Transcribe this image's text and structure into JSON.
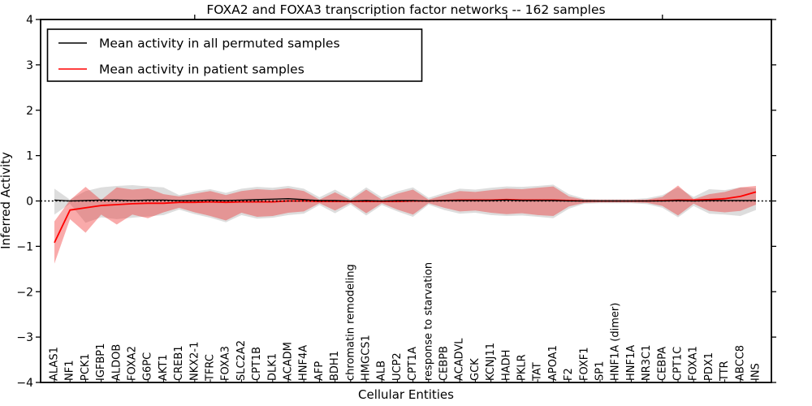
{
  "chart_data": {
    "type": "line",
    "title": "FOXA2 and FOXA3 transcription factor networks -- 162 samples",
    "xlabel": "Cellular Entities",
    "ylabel": "Inferred Activity",
    "ylim": [
      -4,
      4
    ],
    "yticks": [
      4,
      3,
      2,
      1,
      0,
      -1,
      -2,
      -3,
      -4
    ],
    "grid": false,
    "zero_line_style": "dotted",
    "legend_position": "upper left",
    "legend": [
      {
        "label": "Mean activity in all permuted samples",
        "color": "#000000"
      },
      {
        "label": "Mean activity in patient samples",
        "color": "#ff0000"
      }
    ],
    "categories": [
      "ALAS1",
      "NF1",
      "PCK1",
      "IGFBP1",
      "ALDOB",
      "FOXA2",
      "G6PC",
      "AKT1",
      "CREB1",
      "NKX2-1",
      "TFRC",
      "FOXA3",
      "SLC2A2",
      "CPT1B",
      "DLK1",
      "ACADM",
      "HNF4A",
      "AFP",
      "BDH1",
      "chromatin remodeling",
      "HMGCS1",
      "ALB",
      "UCP2",
      "CPT1A",
      "response to starvation",
      "CEBPB",
      "ACADVL",
      "GCK",
      "KCNJ11",
      "HADH",
      "PKLR",
      "TAT",
      "APOA1",
      "F2",
      "FOXF1",
      "SP1",
      "HNF1A (dimer)",
      "HNF1A",
      "NR3C1",
      "CEBPA",
      "CPT1C",
      "FOXA1",
      "PDX1",
      "TTR",
      "ABCC8",
      "INS"
    ],
    "series": [
      {
        "name": "Mean activity in all permuted samples",
        "color": "#000000",
        "values": [
          0.02,
          0.0,
          0.01,
          0.02,
          0.02,
          0.01,
          0.02,
          0.02,
          0.01,
          0.01,
          0.02,
          0.01,
          0.02,
          0.03,
          0.04,
          0.05,
          0.03,
          0.01,
          0.01,
          0.0,
          0.01,
          0.0,
          0.01,
          0.01,
          0.0,
          0.01,
          0.01,
          0.01,
          0.01,
          0.02,
          0.01,
          0.01,
          0.01,
          0.0,
          0.0,
          0.0,
          0.0,
          0.0,
          0.0,
          0.0,
          0.01,
          0.0,
          0.01,
          0.01,
          0.01,
          0.01
        ]
      },
      {
        "name": "Mean activity in patient samples",
        "color": "#ff0000",
        "values": [
          -0.92,
          -0.2,
          -0.15,
          -0.1,
          -0.08,
          -0.06,
          -0.05,
          -0.05,
          -0.03,
          -0.03,
          -0.02,
          -0.03,
          -0.02,
          -0.02,
          -0.02,
          0.0,
          0.0,
          -0.01,
          -0.01,
          -0.01,
          -0.01,
          -0.01,
          -0.01,
          0.0,
          0.0,
          0.01,
          0.02,
          0.02,
          0.02,
          0.03,
          0.02,
          0.02,
          0.02,
          0.01,
          0.0,
          0.0,
          0.0,
          0.0,
          0.0,
          0.01,
          0.02,
          0.02,
          0.03,
          0.05,
          0.1,
          0.2
        ]
      }
    ],
    "bands": [
      {
        "name": "permuted samples range",
        "fill": "#aaaaaa",
        "opacity": 0.4,
        "upper": [
          0.27,
          0.03,
          0.22,
          0.3,
          0.33,
          0.35,
          0.32,
          0.3,
          0.13,
          0.21,
          0.26,
          0.18,
          0.27,
          0.31,
          0.29,
          0.33,
          0.27,
          0.08,
          0.25,
          0.06,
          0.3,
          0.08,
          0.21,
          0.3,
          0.07,
          0.18,
          0.27,
          0.25,
          0.29,
          0.32,
          0.31,
          0.33,
          0.36,
          0.15,
          0.05,
          0.04,
          0.04,
          0.04,
          0.06,
          0.13,
          0.3,
          0.09,
          0.26,
          0.24,
          0.3,
          0.28
        ],
        "lower": [
          -0.3,
          -0.06,
          -0.48,
          -0.36,
          -0.4,
          -0.37,
          -0.34,
          -0.31,
          -0.19,
          -0.29,
          -0.37,
          -0.47,
          -0.31,
          -0.39,
          -0.37,
          -0.31,
          -0.28,
          -0.09,
          -0.27,
          -0.08,
          -0.32,
          -0.09,
          -0.23,
          -0.35,
          -0.08,
          -0.2,
          -0.28,
          -0.26,
          -0.31,
          -0.33,
          -0.32,
          -0.35,
          -0.38,
          -0.17,
          -0.06,
          -0.05,
          -0.05,
          -0.05,
          -0.07,
          -0.15,
          -0.36,
          -0.11,
          -0.28,
          -0.3,
          -0.33,
          -0.2
        ]
      },
      {
        "name": "patient samples range",
        "fill": "#f02020",
        "opacity": 0.38,
        "upper": [
          -0.45,
          0.02,
          0.31,
          0.02,
          0.3,
          0.25,
          0.28,
          0.15,
          0.1,
          0.16,
          0.22,
          0.13,
          0.22,
          0.26,
          0.24,
          0.28,
          0.22,
          0.03,
          0.19,
          0.02,
          0.25,
          0.03,
          0.16,
          0.25,
          0.03,
          0.13,
          0.22,
          0.2,
          0.24,
          0.27,
          0.26,
          0.29,
          0.32,
          0.1,
          0.03,
          0.02,
          0.02,
          0.02,
          0.03,
          0.09,
          0.34,
          0.04,
          0.15,
          0.2,
          0.3,
          0.33
        ],
        "lower": [
          -1.38,
          -0.4,
          -0.7,
          -0.3,
          -0.52,
          -0.3,
          -0.38,
          -0.25,
          -0.15,
          -0.25,
          -0.33,
          -0.43,
          -0.26,
          -0.35,
          -0.33,
          -0.26,
          -0.23,
          -0.05,
          -0.21,
          -0.04,
          -0.27,
          -0.05,
          -0.19,
          -0.3,
          -0.05,
          -0.15,
          -0.23,
          -0.21,
          -0.26,
          -0.29,
          -0.27,
          -0.31,
          -0.33,
          -0.12,
          -0.04,
          -0.03,
          -0.03,
          -0.03,
          -0.04,
          -0.11,
          -0.32,
          -0.06,
          -0.22,
          -0.25,
          -0.22,
          -0.08
        ]
      }
    ],
    "top_major_tick_indices": [
      9,
      19,
      29,
      39
    ]
  }
}
